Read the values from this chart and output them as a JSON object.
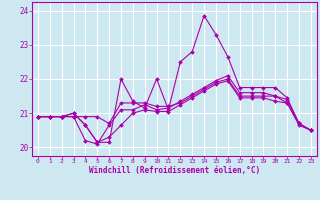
{
  "xlabel": "Windchill (Refroidissement éolien,°C)",
  "background_color": "#cde8f0",
  "grid_color": "#ffffff",
  "line_color": "#aa00aa",
  "xlim": [
    -0.5,
    23.5
  ],
  "ylim": [
    19.75,
    24.25
  ],
  "xticks": [
    0,
    1,
    2,
    3,
    4,
    5,
    6,
    7,
    8,
    9,
    10,
    11,
    12,
    13,
    14,
    15,
    16,
    17,
    18,
    19,
    20,
    21,
    22,
    23
  ],
  "yticks": [
    20,
    21,
    22,
    23,
    24
  ],
  "lines": [
    {
      "x": [
        0,
        1,
        2,
        3,
        4,
        5,
        6,
        7,
        8,
        9,
        10,
        11,
        12,
        13,
        14,
        15,
        16,
        17,
        18,
        19,
        20,
        21,
        22,
        23
      ],
      "y": [
        20.9,
        20.9,
        20.9,
        21.0,
        20.65,
        20.15,
        20.15,
        22.0,
        21.35,
        21.15,
        22.0,
        21.1,
        22.5,
        22.8,
        23.85,
        23.3,
        22.65,
        21.75,
        21.75,
        21.75,
        21.75,
        21.45,
        20.7,
        20.5
      ]
    },
    {
      "x": [
        0,
        1,
        2,
        3,
        4,
        5,
        6,
        7,
        8,
        9,
        10,
        11,
        12,
        13,
        14,
        15,
        16,
        17,
        18,
        19,
        20,
        21,
        22,
        23
      ],
      "y": [
        20.9,
        20.9,
        20.9,
        20.9,
        20.2,
        20.1,
        20.65,
        21.1,
        21.1,
        21.25,
        21.1,
        21.15,
        21.35,
        21.55,
        21.75,
        21.95,
        22.1,
        21.6,
        21.6,
        21.6,
        21.5,
        21.4,
        20.7,
        20.5
      ]
    },
    {
      "x": [
        0,
        1,
        2,
        3,
        4,
        5,
        6,
        7,
        8,
        9,
        10,
        11,
        12,
        13,
        14,
        15,
        16,
        17,
        18,
        19,
        20,
        21,
        22,
        23
      ],
      "y": [
        20.9,
        20.9,
        20.9,
        20.9,
        20.9,
        20.9,
        20.7,
        21.3,
        21.3,
        21.3,
        21.2,
        21.2,
        21.3,
        21.5,
        21.7,
        21.9,
        22.0,
        21.5,
        21.5,
        21.5,
        21.5,
        21.3,
        20.7,
        20.5
      ]
    },
    {
      "x": [
        0,
        1,
        2,
        3,
        4,
        5,
        6,
        7,
        8,
        9,
        10,
        11,
        12,
        13,
        14,
        15,
        16,
        17,
        18,
        19,
        20,
        21,
        22,
        23
      ],
      "y": [
        20.9,
        20.9,
        20.9,
        21.0,
        20.65,
        20.15,
        20.3,
        20.65,
        21.0,
        21.1,
        21.05,
        21.05,
        21.25,
        21.45,
        21.65,
        21.85,
        21.95,
        21.45,
        21.45,
        21.45,
        21.35,
        21.3,
        20.65,
        20.5
      ]
    }
  ]
}
